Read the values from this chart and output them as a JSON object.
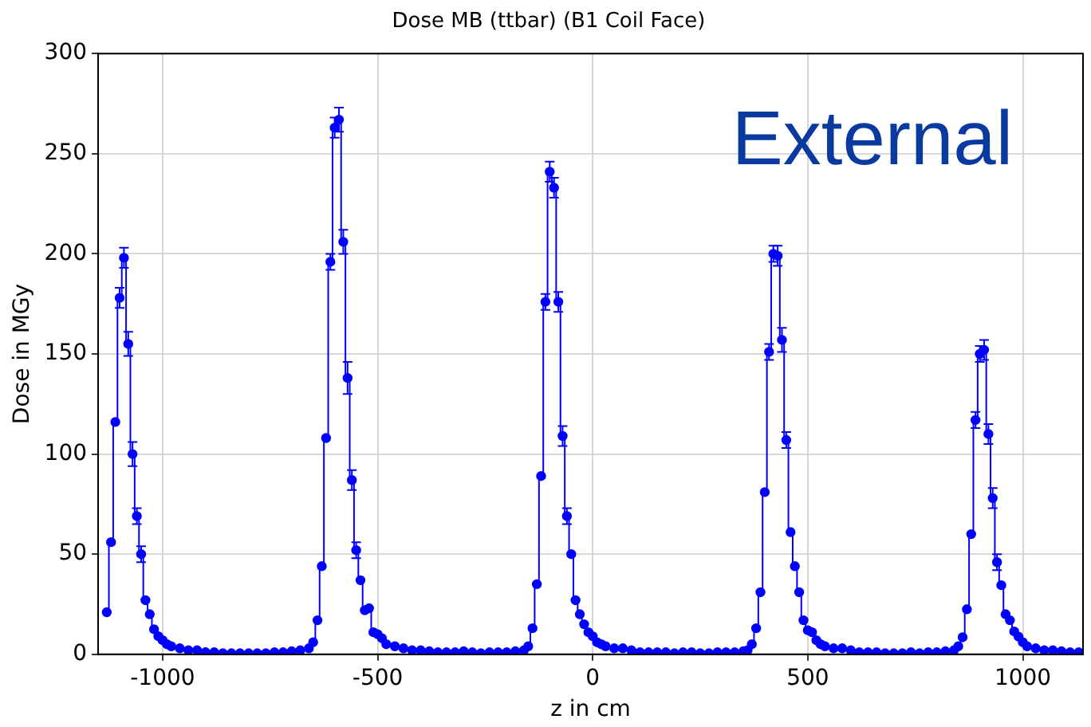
{
  "chart_data": {
    "type": "step",
    "title": "Dose MB (ttbar) (B1 Coil Face)",
    "xlabel": "z in cm",
    "ylabel": "Dose in MGy",
    "annotations": [
      "External"
    ],
    "x": [
      -1130,
      -1120,
      -1110,
      -1100,
      -1090,
      -1080,
      -1070,
      -1060,
      -1050,
      -1040,
      -1030,
      -1020,
      -1010,
      -1000,
      -990,
      -980,
      -960,
      -940,
      -920,
      -900,
      -880,
      -860,
      -840,
      -820,
      -800,
      -780,
      -760,
      -740,
      -720,
      -700,
      -680,
      -660,
      -650,
      -640,
      -630,
      -620,
      -610,
      -600,
      -590,
      -580,
      -570,
      -560,
      -550,
      -540,
      -530,
      -520,
      -510,
      -500,
      -490,
      -480,
      -460,
      -440,
      -420,
      -400,
      -380,
      -360,
      -340,
      -320,
      -300,
      -280,
      -260,
      -240,
      -220,
      -200,
      -180,
      -160,
      -150,
      -140,
      -130,
      -120,
      -110,
      -100,
      -90,
      -80,
      -70,
      -60,
      -50,
      -40,
      -30,
      -20,
      -10,
      0,
      10,
      20,
      30,
      50,
      70,
      90,
      110,
      130,
      150,
      170,
      190,
      210,
      230,
      250,
      270,
      290,
      310,
      330,
      350,
      360,
      370,
      380,
      390,
      400,
      410,
      420,
      430,
      440,
      450,
      460,
      470,
      480,
      490,
      500,
      510,
      520,
      530,
      540,
      560,
      580,
      600,
      620,
      640,
      660,
      680,
      700,
      720,
      740,
      760,
      780,
      800,
      820,
      840,
      850,
      860,
      870,
      880,
      890,
      900,
      910,
      920,
      930,
      940,
      950,
      960,
      970,
      980,
      990,
      1000,
      1010,
      1030,
      1050,
      1070,
      1090,
      1110,
      1130
    ],
    "series": [
      {
        "color": "#0000ff",
        "values": [
          21,
          56,
          116,
          178,
          198,
          155,
          100,
          69,
          50,
          27,
          20,
          12.5,
          9,
          7,
          5,
          4,
          3,
          2,
          2,
          1,
          1,
          0.5,
          0.5,
          0.5,
          0.5,
          0.5,
          0.5,
          1,
          1,
          1.5,
          2,
          3,
          6,
          17,
          44,
          108,
          196,
          263,
          267,
          206,
          138,
          87,
          52,
          37,
          22,
          23,
          11,
          10,
          8,
          5,
          4,
          3,
          2,
          2,
          1.5,
          1,
          1,
          1,
          1.5,
          1,
          0.5,
          1,
          1,
          1,
          1.5,
          2,
          4,
          13,
          35,
          89,
          176,
          241,
          233,
          176,
          109,
          69,
          50,
          27,
          20,
          15,
          11,
          9,
          6,
          5,
          4,
          3,
          3,
          2,
          1,
          1,
          1,
          1,
          0.5,
          1,
          1,
          0.5,
          0.5,
          1,
          1,
          1,
          1.5,
          2,
          5,
          13,
          31,
          81,
          151,
          200,
          199,
          157,
          107,
          61,
          44,
          31,
          17,
          12,
          11,
          7,
          5,
          4,
          3,
          3,
          2,
          1,
          1,
          1,
          0.5,
          0.5,
          0.5,
          1,
          0.5,
          1,
          1,
          1.5,
          2,
          4,
          8.5,
          22.5,
          60,
          117,
          150,
          152,
          110,
          78,
          46,
          34.5,
          20,
          17,
          11.4,
          8.8,
          6,
          4,
          3,
          2,
          2,
          1.5,
          1,
          1
        ],
        "errors": [
          null,
          null,
          null,
          5,
          5,
          6,
          6,
          4,
          4,
          null,
          null,
          null,
          null,
          null,
          null,
          null,
          null,
          null,
          null,
          null,
          null,
          null,
          null,
          null,
          null,
          null,
          null,
          null,
          null,
          null,
          null,
          null,
          null,
          null,
          null,
          null,
          4,
          5,
          6,
          6,
          8,
          5,
          4,
          null,
          null,
          null,
          null,
          null,
          null,
          null,
          null,
          null,
          null,
          null,
          null,
          null,
          null,
          null,
          null,
          null,
          null,
          null,
          null,
          null,
          null,
          null,
          null,
          null,
          null,
          null,
          4,
          5,
          5,
          5,
          5,
          4,
          null,
          null,
          null,
          null,
          null,
          null,
          null,
          null,
          null,
          null,
          null,
          null,
          null,
          null,
          null,
          null,
          null,
          null,
          null,
          null,
          null,
          null,
          null,
          null,
          null,
          null,
          null,
          null,
          null,
          null,
          4,
          4,
          5,
          6,
          4,
          null,
          null,
          null,
          null,
          null,
          null,
          null,
          null,
          null,
          null,
          null,
          null,
          null,
          null,
          null,
          null,
          null,
          null,
          null,
          null,
          null,
          null,
          null,
          null,
          null,
          null,
          null,
          null,
          4,
          4,
          5,
          5,
          5,
          4,
          null,
          null,
          null,
          null,
          null,
          null,
          null,
          null,
          null,
          null,
          null,
          null,
          null
        ]
      }
    ],
    "xlim": [
      -1150,
      1140
    ],
    "xticks": [
      -1000,
      -500,
      0,
      500,
      1000
    ],
    "ylim": [
      0,
      300
    ],
    "yticks": [
      0,
      50,
      100,
      150,
      200,
      250,
      300
    ],
    "grid": true,
    "legend": false,
    "marker": "circle",
    "line_style": "solid"
  }
}
